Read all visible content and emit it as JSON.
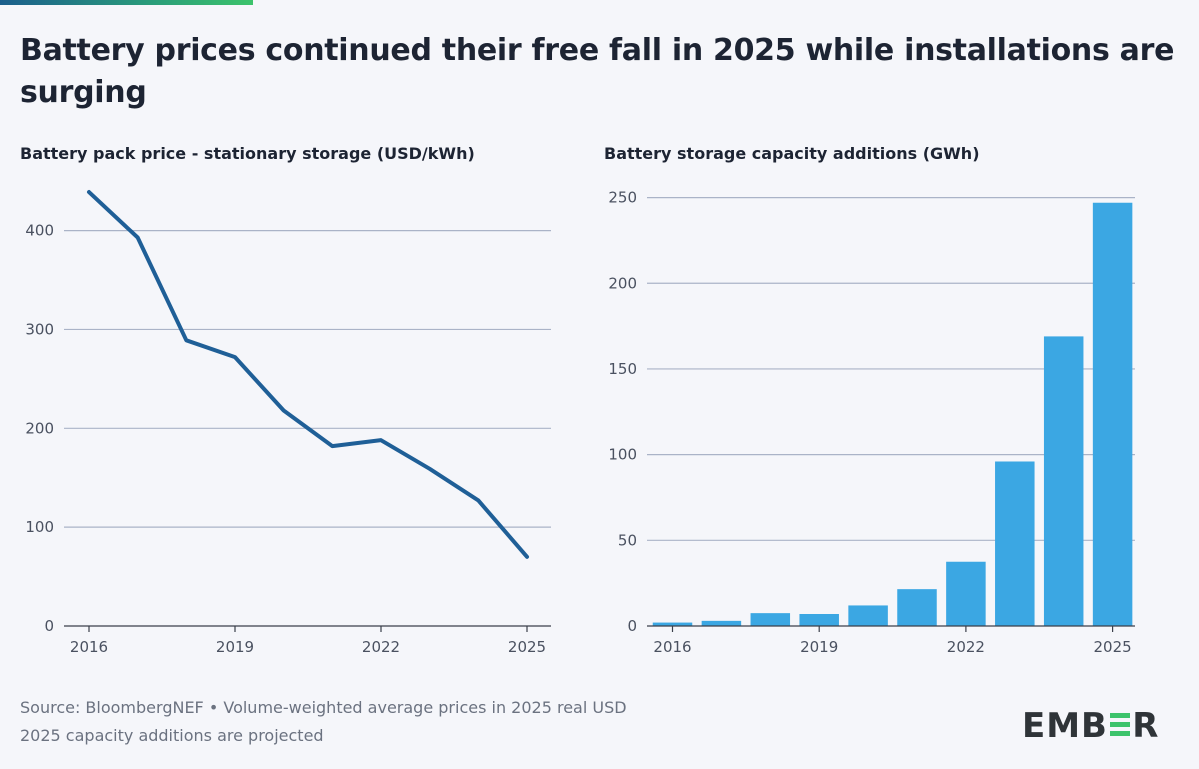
{
  "title": "Battery prices continued their free fall in 2025 while installations are surging",
  "footer": {
    "source": "Source: BloombergNEF • Volume-weighted average prices in 2025 real USD",
    "note": "2025 capacity additions are projected"
  },
  "logo": {
    "text": "EMBER",
    "accent_color": "#3cc36b"
  },
  "colors": {
    "line": "#1f5f97",
    "bar": "#3ba7e3",
    "grid": "#aab3c7"
  },
  "chart_data": [
    {
      "type": "line",
      "title": "Battery pack price - stationary storage (USD/kWh)",
      "x": [
        2016,
        2017,
        2018,
        2019,
        2020,
        2021,
        2022,
        2023,
        2024,
        2025
      ],
      "values": [
        439,
        393,
        289,
        272,
        218,
        182,
        188,
        159,
        127,
        70
      ],
      "xticks": [
        "2016",
        "2019",
        "2022",
        "2025"
      ],
      "yticks": [
        0,
        100,
        200,
        300,
        400
      ],
      "ylim": [
        0,
        440
      ],
      "grid": true
    },
    {
      "type": "bar",
      "title": "Battery storage capacity additions (GWh)",
      "categories": [
        2016,
        2017,
        2018,
        2019,
        2020,
        2021,
        2022,
        2023,
        2024,
        2025
      ],
      "values": [
        2,
        3,
        7.5,
        7,
        12,
        21.5,
        37.5,
        96,
        169,
        247
      ],
      "xticks": [
        "2016",
        "2019",
        "2022",
        "2025"
      ],
      "yticks": [
        0,
        50,
        100,
        150,
        200,
        250
      ],
      "ylim": [
        0,
        250
      ],
      "grid": true
    }
  ]
}
